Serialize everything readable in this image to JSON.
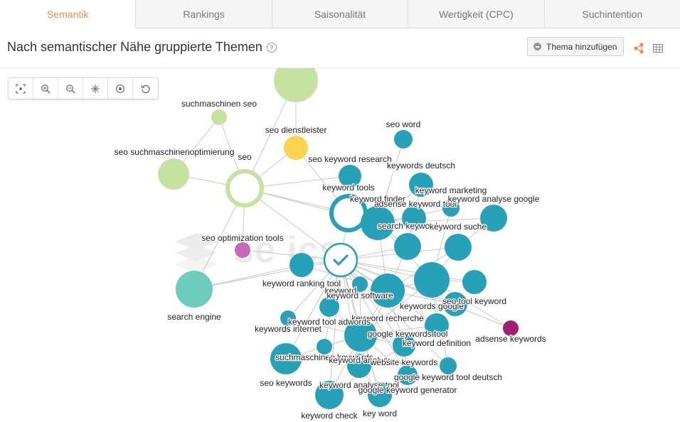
{
  "tabs": [
    {
      "label": "Semantik",
      "active": true
    },
    {
      "label": "Rankings",
      "active": false
    },
    {
      "label": "Saisonalität",
      "active": false
    },
    {
      "label": "Wertigkeit (CPC)",
      "active": false
    },
    {
      "label": "Suchintention",
      "active": false
    }
  ],
  "header": {
    "title": "Nach semantischer Nähe gruppierte Themen",
    "help_icon_glyph": "?",
    "add_button_label": "Thema hinzufügen"
  },
  "toolbar": [
    {
      "name": "fit-to-screen",
      "icon": "fit-icon"
    },
    {
      "name": "zoom-in",
      "icon": "zoom-in-icon"
    },
    {
      "name": "zoom-out",
      "icon": "zoom-out-icon"
    },
    {
      "name": "layout",
      "icon": "layout-icon"
    },
    {
      "name": "center",
      "icon": "target-icon"
    },
    {
      "name": "reset",
      "icon": "reset-icon"
    }
  ],
  "watermark": {
    "text": "semrush metrics",
    "visible_text": "se          ics"
  },
  "colors": {
    "accent": "#ef8a55",
    "teal": "#27a1b7",
    "light_green": "#c5e2a1",
    "yellow": "#fcd34f",
    "mint": "#6ccdbd",
    "orchid": "#c868b9",
    "plum": "#a11f6e",
    "edge": "#c8c8c8"
  },
  "graph": {
    "nodes": [
      {
        "id": "top",
        "label": "",
        "color": "light_green",
        "size": "xl"
      },
      {
        "id": "sm_seo",
        "label": "suchmaschinen seo",
        "color": "light_green",
        "size": "s"
      },
      {
        "id": "seo_dienst",
        "label": "seo dienstleister",
        "color": "yellow",
        "size": "m"
      },
      {
        "id": "seo_smo",
        "label": "seo suchmaschinenoptimierung",
        "color": "light_green",
        "size": "l"
      },
      {
        "id": "seo",
        "label": "seo",
        "color": "light_green",
        "size": "ring"
      },
      {
        "id": "seo_word",
        "label": "seo word",
        "color": "teal",
        "size": "s"
      },
      {
        "id": "seo_kr",
        "label": "seo keyword research",
        "color": "teal",
        "size": "m"
      },
      {
        "id": "kw_deutsch",
        "label": "keywords deutsch",
        "color": "teal",
        "size": "m"
      },
      {
        "id": "kw_tools",
        "label": "keyword tools",
        "color": "teal",
        "size": "ring"
      },
      {
        "id": "kw_marketing",
        "label": "keyword marketing",
        "color": "teal",
        "size": "m"
      },
      {
        "id": "kw_finder",
        "label": "keyword finder",
        "color": "teal",
        "size": "l"
      },
      {
        "id": "adsense_kt",
        "label": "adsense keyword tool",
        "color": "teal",
        "size": "s"
      },
      {
        "id": "kw_analyse_google",
        "label": "keyword analyse google",
        "color": "teal",
        "size": "m"
      },
      {
        "id": "seo_opt_tools",
        "label": "seo optimization tools",
        "color": "orchid",
        "size": "xs"
      },
      {
        "id": "search_kw",
        "label": "search keyword",
        "color": "teal",
        "size": "m"
      },
      {
        "id": "kw_suche",
        "label": "keyword suche",
        "color": "teal",
        "size": "m"
      },
      {
        "id": "kw_right",
        "label": "",
        "color": "teal",
        "size": "m"
      },
      {
        "id": "keyword",
        "label": "keyword",
        "color": "teal",
        "size": "selected"
      },
      {
        "id": "search_engine",
        "label": "search engine",
        "color": "mint",
        "size": "l"
      },
      {
        "id": "kw_ranking",
        "label": "keyword ranking tool",
        "color": "teal",
        "size": "m"
      },
      {
        "id": "kw_software",
        "label": "keyword software",
        "color": "teal",
        "size": "xs"
      },
      {
        "id": "kw_google",
        "label": "keywords google",
        "color": "teal",
        "size": "l"
      },
      {
        "id": "seo_tool_kw",
        "label": "seo tool keyword",
        "color": "teal",
        "size": "m"
      },
      {
        "id": "kw_recherche",
        "label": "keyword recherche",
        "color": "teal",
        "size": "xl"
      },
      {
        "id": "kw_tool_adwords",
        "label": "keyword tool adwords",
        "color": "teal",
        "size": "s"
      },
      {
        "id": "kw_internet",
        "label": "keywords internet",
        "color": "teal",
        "size": "xs"
      },
      {
        "id": "adsense_kws",
        "label": "adsense keywords",
        "color": "plum",
        "size": "xs"
      },
      {
        "id": "gkt",
        "label": "google keywords tool",
        "color": "teal",
        "size": "l"
      },
      {
        "id": "kw_definition",
        "label": "keyword definition",
        "color": "teal",
        "size": "m"
      },
      {
        "id": "sm_keywords",
        "label": "suchmaschinen keywords",
        "color": "teal",
        "size": "xs"
      },
      {
        "id": "kw_analyse",
        "label": "keyword analyse",
        "color": "teal",
        "size": "m"
      },
      {
        "id": "website_kws",
        "label": "website keywords",
        "color": "teal",
        "size": "m"
      },
      {
        "id": "seo_keywords",
        "label": "seo keywords",
        "color": "teal",
        "size": "l"
      },
      {
        "id": "gktd",
        "label": "google keyword tool deutsch",
        "color": "teal",
        "size": "xs"
      },
      {
        "id": "kat",
        "label": "keyword analyse tool",
        "color": "teal",
        "size": "s"
      },
      {
        "id": "gkg",
        "label": "google keyword generator",
        "color": "teal",
        "size": "m"
      },
      {
        "id": "kw_check",
        "label": "keyword check",
        "color": "teal",
        "size": "l"
      },
      {
        "id": "key_word",
        "label": "key word",
        "color": "teal",
        "size": "m"
      }
    ]
  }
}
